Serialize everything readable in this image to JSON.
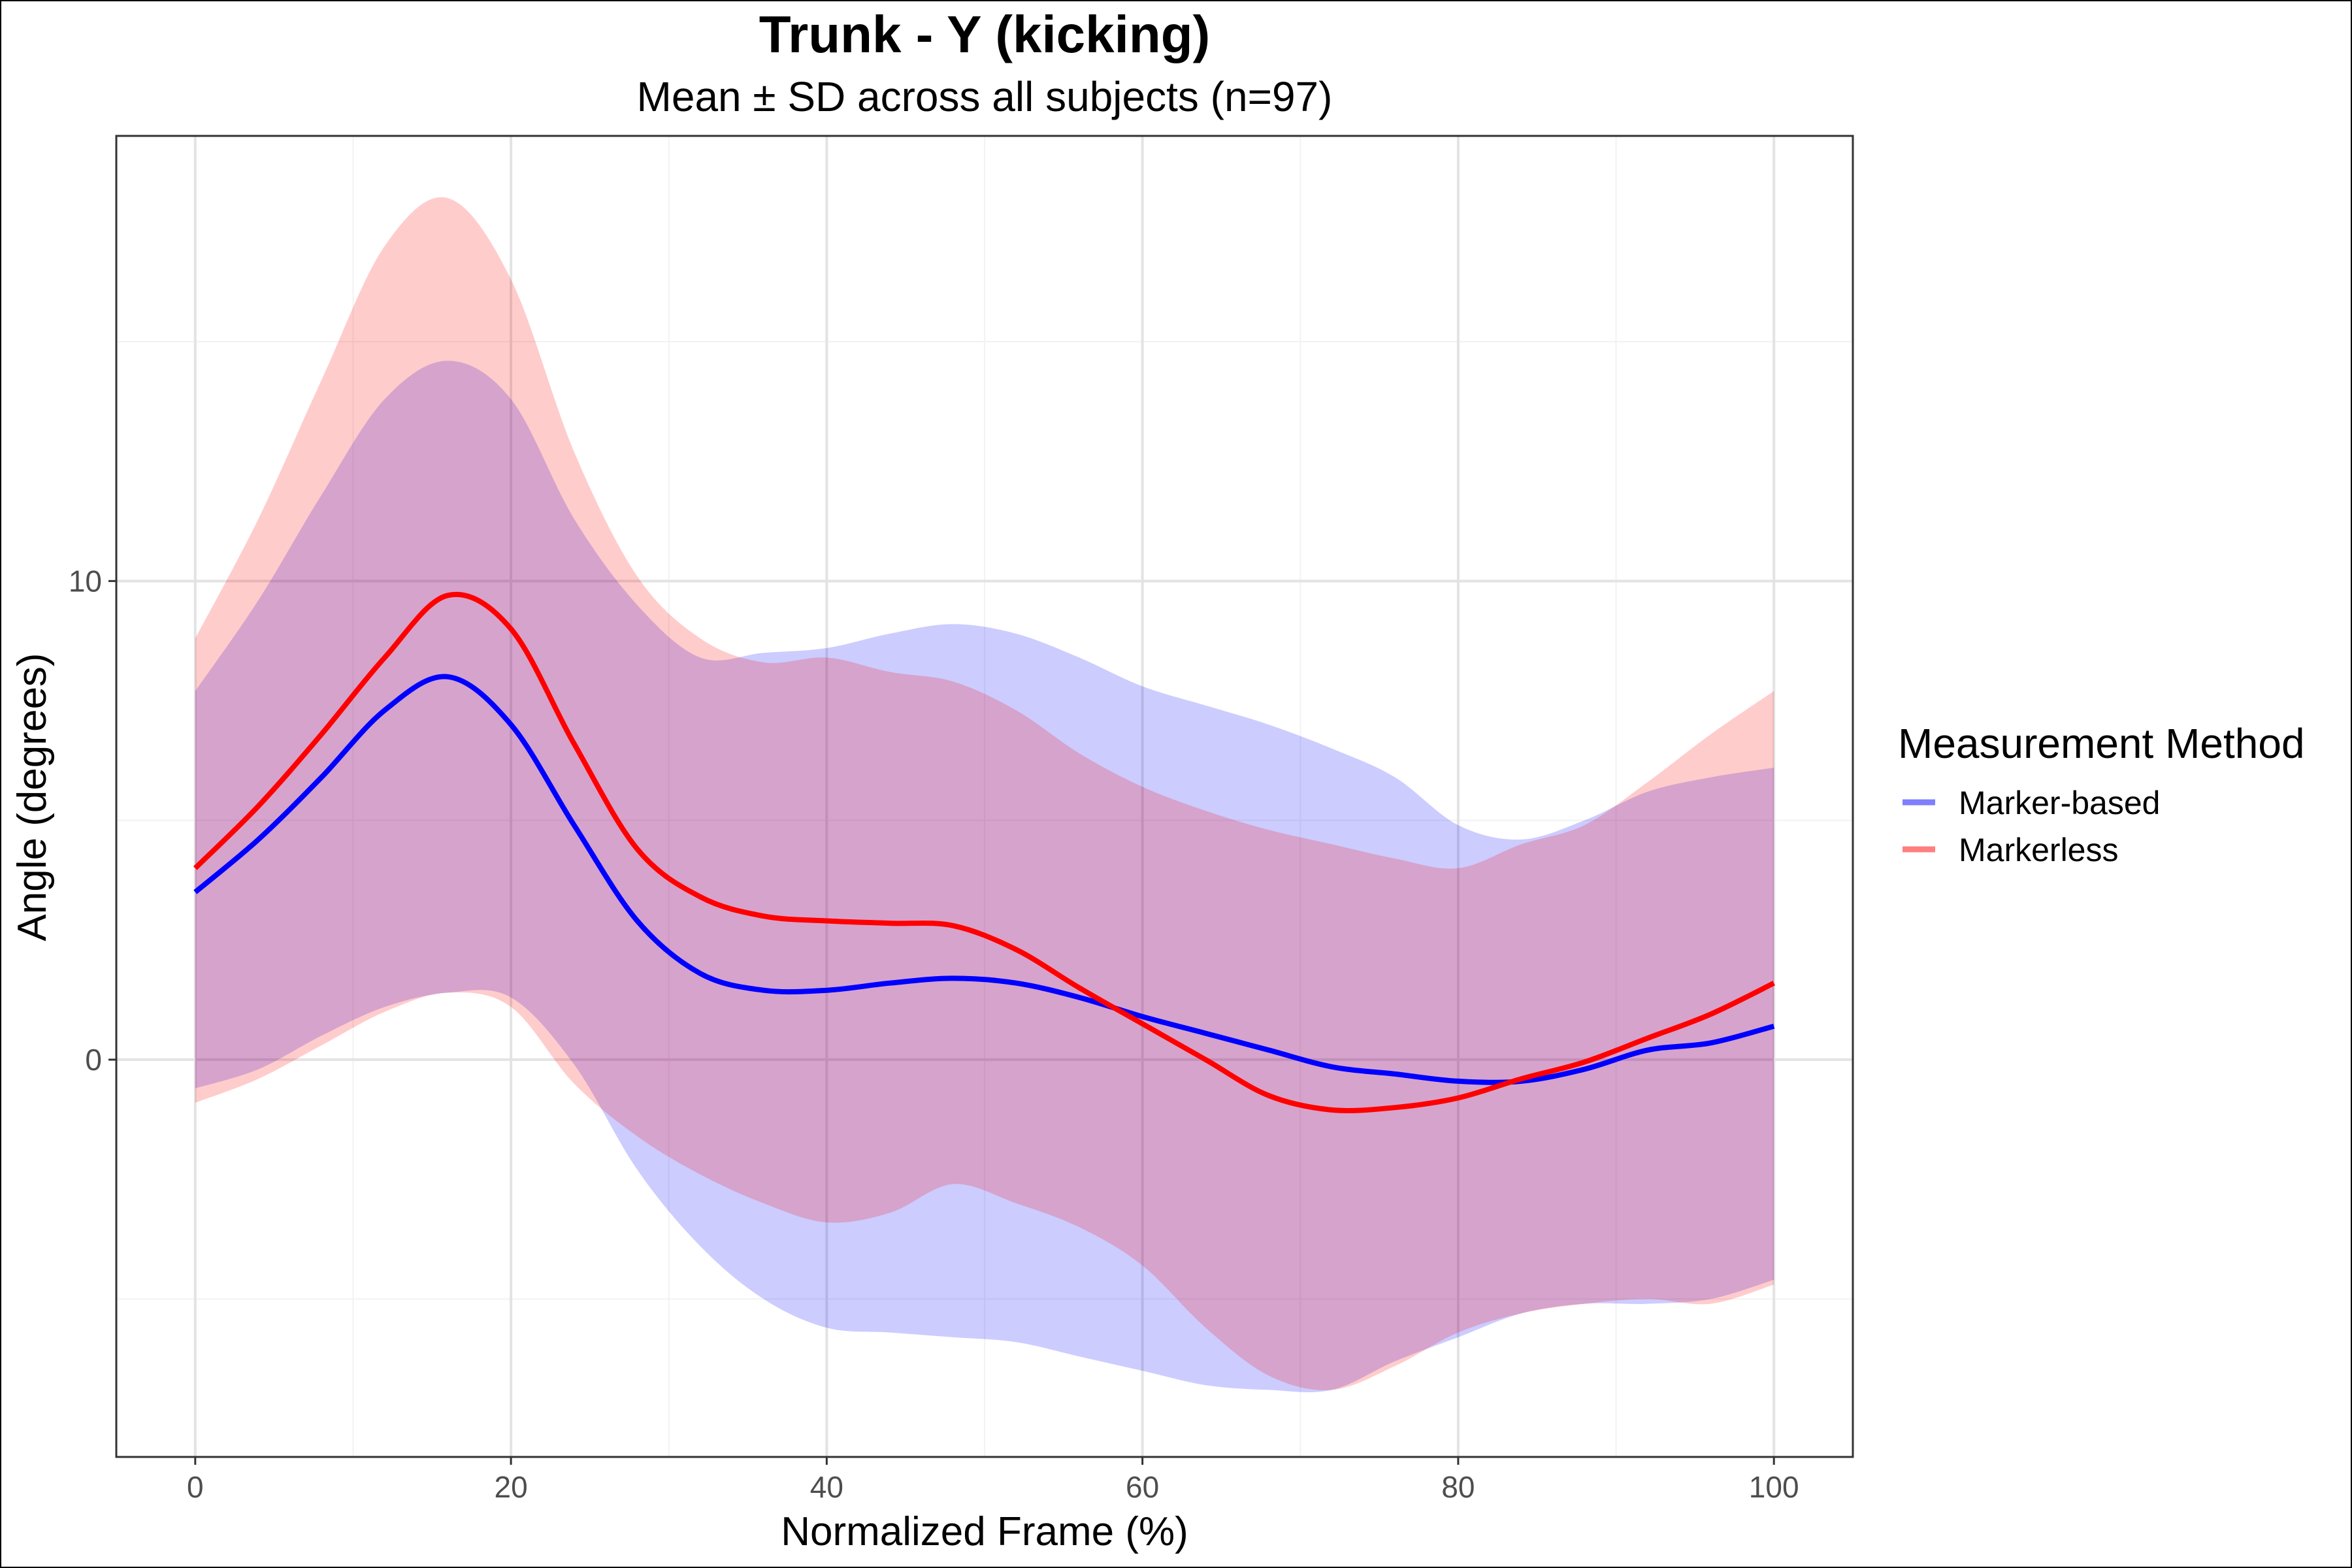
{
  "chart_data": {
    "type": "line",
    "title": "Trunk - Y (kicking)",
    "subtitle": "Mean ± SD across all subjects (n=97)",
    "xlabel": "Normalized Frame (%)",
    "ylabel": "Angle (degrees)",
    "xlim": [
      -5,
      105
    ],
    "ylim": [
      -8.3,
      19.3
    ],
    "x_ticks": [
      0,
      20,
      40,
      60,
      80,
      100
    ],
    "y_ticks": [
      0,
      10
    ],
    "x_minor_ticks": [
      10,
      30,
      50,
      70,
      90
    ],
    "y_minor_ticks": [
      -5,
      5,
      15
    ],
    "grid": true,
    "legend": {
      "title": "Measurement Method",
      "position": "right"
    },
    "x": [
      0,
      4,
      8,
      12,
      16,
      20,
      24,
      28,
      32,
      36,
      40,
      44,
      48,
      52,
      56,
      60,
      64,
      68,
      72,
      76,
      80,
      84,
      88,
      92,
      96,
      100
    ],
    "series": [
      {
        "name": "Marker-based",
        "color": "#0000ff",
        "band_color": "#c8c8ff",
        "mean": [
          3.5,
          4.6,
          5.9,
          7.3,
          8.0,
          7.0,
          4.9,
          2.9,
          1.8,
          1.45,
          1.45,
          1.6,
          1.7,
          1.6,
          1.3,
          0.9,
          0.55,
          0.2,
          -0.15,
          -0.3,
          -0.45,
          -0.45,
          -0.2,
          0.2,
          0.35,
          0.7
        ],
        "upper": [
          7.7,
          9.6,
          11.8,
          13.8,
          14.6,
          13.8,
          11.3,
          9.5,
          8.4,
          8.5,
          8.6,
          8.9,
          9.1,
          8.9,
          8.4,
          7.8,
          7.4,
          7.0,
          6.5,
          5.9,
          4.9,
          4.6,
          5.0,
          5.6,
          5.9,
          6.1
        ],
        "lower": [
          -0.6,
          -0.2,
          0.5,
          1.1,
          1.4,
          1.3,
          -0.1,
          -2.3,
          -3.9,
          -5.0,
          -5.6,
          -5.7,
          -5.8,
          -5.9,
          -6.2,
          -6.5,
          -6.8,
          -6.9,
          -6.9,
          -6.3,
          -5.8,
          -5.3,
          -5.1,
          -5.1,
          -5.0,
          -4.6
        ]
      },
      {
        "name": "Markerless",
        "color": "#ff0000",
        "band_color": "#ffc8c8",
        "mean": [
          4.0,
          5.3,
          6.8,
          8.4,
          9.7,
          9.0,
          6.6,
          4.4,
          3.4,
          3.0,
          2.9,
          2.85,
          2.8,
          2.3,
          1.5,
          0.75,
          0.0,
          -0.75,
          -1.05,
          -1.0,
          -0.8,
          -0.4,
          -0.05,
          0.45,
          0.95,
          1.6
        ],
        "upper": [
          8.8,
          11.3,
          14.2,
          17.0,
          18.0,
          16.3,
          12.7,
          10.1,
          8.8,
          8.3,
          8.4,
          8.1,
          7.9,
          7.3,
          6.4,
          5.7,
          5.2,
          4.8,
          4.5,
          4.2,
          4.0,
          4.5,
          4.9,
          5.8,
          6.8,
          7.7
        ],
        "lower": [
          -0.9,
          -0.4,
          0.3,
          1.0,
          1.4,
          1.1,
          -0.5,
          -1.6,
          -2.4,
          -3.0,
          -3.4,
          -3.2,
          -2.6,
          -3.0,
          -3.5,
          -4.3,
          -5.6,
          -6.6,
          -6.9,
          -6.4,
          -5.7,
          -5.3,
          -5.1,
          -5.0,
          -5.1,
          -4.7
        ]
      }
    ]
  }
}
